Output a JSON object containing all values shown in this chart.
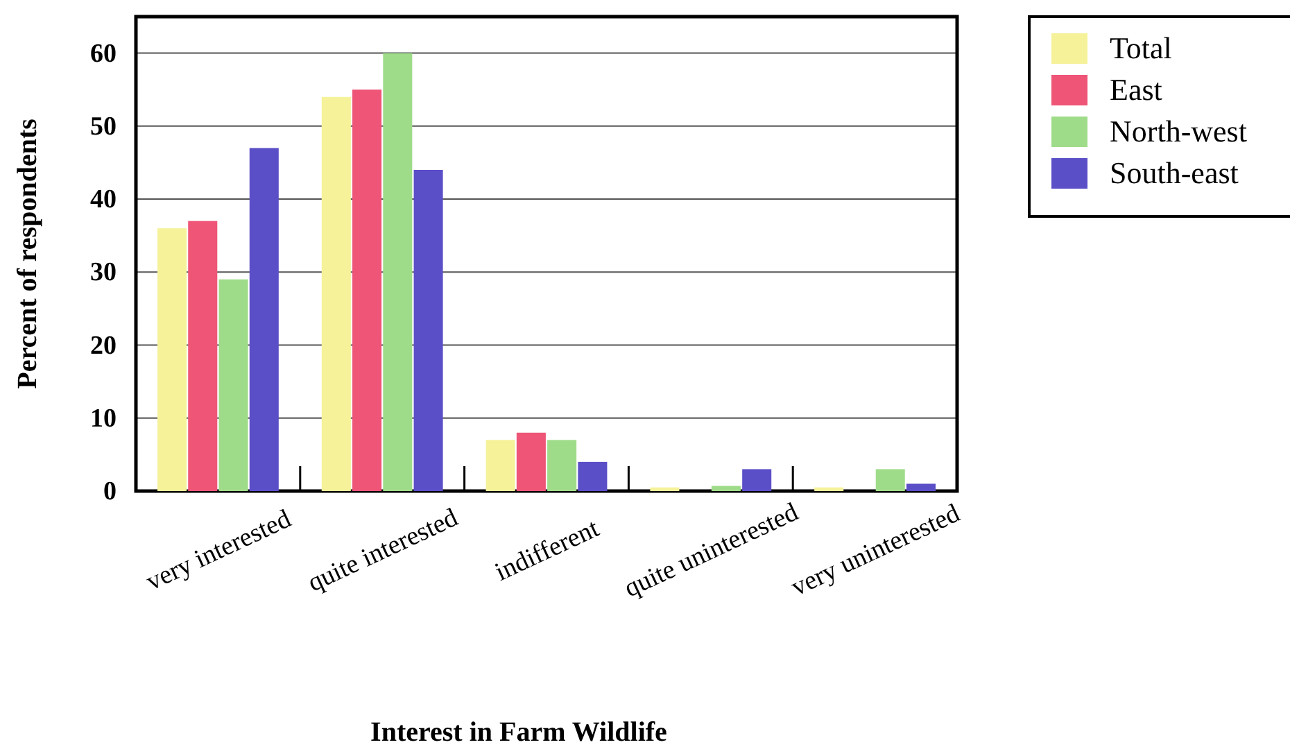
{
  "chart_data": {
    "type": "bar",
    "xlabel": "Interest in Farm Wildlife",
    "ylabel": "Percent of respondents",
    "categories": [
      "very interested",
      "quite interested",
      "indifferent",
      "quite uninterested",
      "very uninterested"
    ],
    "series": [
      {
        "name": "Total",
        "color": "#f5f29a",
        "values": [
          36,
          54,
          7,
          0.5,
          0.5
        ]
      },
      {
        "name": "East",
        "color": "#ee5577",
        "values": [
          37,
          55,
          8,
          0,
          0
        ]
      },
      {
        "name": "North-west",
        "color": "#9fdc8a",
        "values": [
          29,
          60,
          7,
          0.7,
          3
        ]
      },
      {
        "name": "South-east",
        "color": "#5b4fc8",
        "values": [
          47,
          44,
          4,
          3,
          1
        ]
      }
    ],
    "ylim": [
      0,
      65
    ],
    "yticks": [
      0,
      10,
      20,
      30,
      40,
      50,
      60
    ],
    "grid": "y",
    "legend": "top right"
  }
}
